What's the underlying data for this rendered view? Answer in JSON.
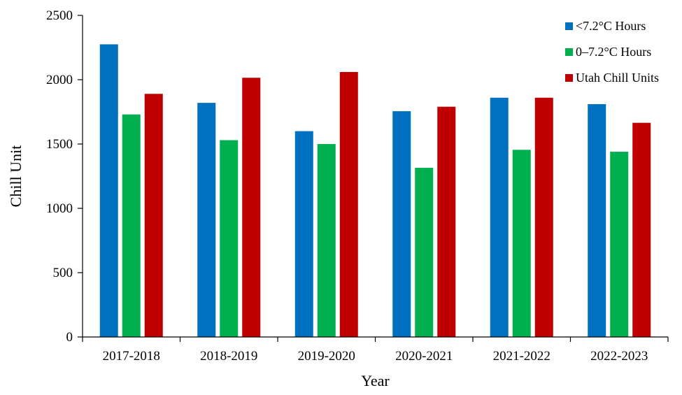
{
  "chart_data": {
    "type": "bar",
    "xlabel": "Year",
    "ylabel": "Chill Unit",
    "ylim": [
      0,
      2500
    ],
    "yticks": [
      0,
      500,
      1000,
      1500,
      2000,
      2500
    ],
    "grid": false,
    "legend_position": "top-right",
    "categories": [
      "2017-2018",
      "2018-2019",
      "2019-2020",
      "2020-2021",
      "2021-2022",
      "2022-2023"
    ],
    "series": [
      {
        "name": "<7.2°C Hours",
        "color": "#0070c0",
        "values": [
          2275,
          1820,
          1600,
          1755,
          1860,
          1810
        ]
      },
      {
        "name": "0–7.2°C Hours",
        "color": "#00b050",
        "values": [
          1730,
          1530,
          1500,
          1315,
          1455,
          1440
        ]
      },
      {
        "name": "Utah Chill Units",
        "color": "#c00000",
        "values": [
          1890,
          2015,
          2060,
          1790,
          1860,
          1665
        ]
      }
    ]
  }
}
